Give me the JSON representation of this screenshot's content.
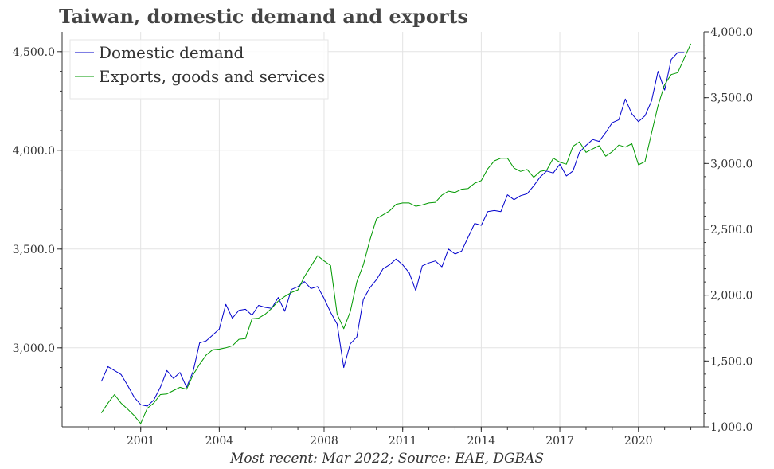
{
  "title": "Taiwan, domestic demand and exports",
  "source_note": "Most recent: Mar 2022; Source: EAE, DGBAS",
  "chart_data": {
    "type": "line",
    "title": "Taiwan, domestic demand and exports",
    "xlabel": "",
    "ylabel": "",
    "grid": true,
    "legend_position": "top-left",
    "x_ticks": [
      "2001",
      "2004",
      "2008",
      "2011",
      "2014",
      "2017",
      "2020"
    ],
    "x_tick_positions": [
      2001.0,
      2004.0,
      2008.0,
      2011.0,
      2014.0,
      2017.0,
      2020.0
    ],
    "xlim": [
      1998.0,
      2022.5
    ],
    "y_left": {
      "ylim": [
        2600,
        4600
      ],
      "ticks": [
        "3,000.0",
        "3,500.0",
        "4,000.0",
        "4,500.0"
      ],
      "tick_values": [
        3000,
        3500,
        4000,
        4500
      ]
    },
    "y_right": {
      "ylim": [
        1000,
        4000
      ],
      "ticks": [
        "1,000.0",
        "1,500.0",
        "2,000.0",
        "2,500.0",
        "3,000.0",
        "3,500.0",
        "4,000.0"
      ],
      "tick_values": [
        1000,
        1500,
        2000,
        2500,
        3000,
        3500,
        4000
      ]
    },
    "series": [
      {
        "name": "Domestic demand",
        "axis": "left",
        "color": "#0000cc",
        "points": [
          [
            1999.5,
            2830
          ],
          [
            1999.75,
            2905
          ],
          [
            2000.0,
            2885
          ],
          [
            2000.25,
            2865
          ],
          [
            2000.5,
            2810
          ],
          [
            2000.75,
            2750
          ],
          [
            2001.0,
            2712
          ],
          [
            2001.25,
            2705
          ],
          [
            2001.5,
            2735
          ],
          [
            2001.75,
            2800
          ],
          [
            2002.0,
            2885
          ],
          [
            2002.25,
            2845
          ],
          [
            2002.5,
            2875
          ],
          [
            2002.75,
            2800
          ],
          [
            2003.0,
            2880
          ],
          [
            2003.25,
            3025
          ],
          [
            2003.5,
            3035
          ],
          [
            2003.75,
            3065
          ],
          [
            2004.0,
            3095
          ],
          [
            2004.25,
            3220
          ],
          [
            2004.5,
            3150
          ],
          [
            2004.75,
            3190
          ],
          [
            2005.0,
            3195
          ],
          [
            2005.25,
            3165
          ],
          [
            2005.5,
            3215
          ],
          [
            2005.75,
            3205
          ],
          [
            2006.0,
            3200
          ],
          [
            2006.25,
            3255
          ],
          [
            2006.5,
            3185
          ],
          [
            2006.75,
            3295
          ],
          [
            2007.0,
            3310
          ],
          [
            2007.25,
            3335
          ],
          [
            2007.5,
            3300
          ],
          [
            2007.75,
            3310
          ],
          [
            2008.0,
            3250
          ],
          [
            2008.25,
            3180
          ],
          [
            2008.5,
            3120
          ],
          [
            2008.75,
            2900
          ],
          [
            2009.0,
            3020
          ],
          [
            2009.25,
            3055
          ],
          [
            2009.5,
            3245
          ],
          [
            2009.75,
            3305
          ],
          [
            2010.0,
            3345
          ],
          [
            2010.25,
            3400
          ],
          [
            2010.5,
            3420
          ],
          [
            2010.75,
            3450
          ],
          [
            2011.0,
            3420
          ],
          [
            2011.25,
            3380
          ],
          [
            2011.5,
            3290
          ],
          [
            2011.75,
            3415
          ],
          [
            2012.0,
            3430
          ],
          [
            2012.25,
            3440
          ],
          [
            2012.5,
            3410
          ],
          [
            2012.75,
            3500
          ],
          [
            2013.0,
            3475
          ],
          [
            2013.25,
            3490
          ],
          [
            2013.5,
            3560
          ],
          [
            2013.75,
            3630
          ],
          [
            2014.0,
            3620
          ],
          [
            2014.25,
            3690
          ],
          [
            2014.5,
            3695
          ],
          [
            2014.75,
            3690
          ],
          [
            2015.0,
            3775
          ],
          [
            2015.25,
            3750
          ],
          [
            2015.5,
            3770
          ],
          [
            2015.75,
            3780
          ],
          [
            2016.0,
            3820
          ],
          [
            2016.25,
            3865
          ],
          [
            2016.5,
            3895
          ],
          [
            2016.75,
            3885
          ],
          [
            2017.0,
            3930
          ],
          [
            2017.25,
            3870
          ],
          [
            2017.5,
            3895
          ],
          [
            2017.75,
            3990
          ],
          [
            2018.0,
            4025
          ],
          [
            2018.25,
            4055
          ],
          [
            2018.5,
            4045
          ],
          [
            2018.75,
            4090
          ],
          [
            2019.0,
            4140
          ],
          [
            2019.25,
            4155
          ],
          [
            2019.5,
            4260
          ],
          [
            2019.75,
            4185
          ],
          [
            2020.0,
            4145
          ],
          [
            2020.25,
            4175
          ],
          [
            2020.5,
            4250
          ],
          [
            2020.75,
            4400
          ],
          [
            2021.0,
            4305
          ],
          [
            2021.25,
            4460
          ],
          [
            2021.5,
            4495
          ],
          [
            2021.75,
            4495
          ]
        ]
      },
      {
        "name": "Exports, goods and services",
        "axis": "right",
        "color": "#009900",
        "points": [
          [
            1999.5,
            1105
          ],
          [
            1999.75,
            1180
          ],
          [
            2000.0,
            1245
          ],
          [
            2000.25,
            1180
          ],
          [
            2000.5,
            1135
          ],
          [
            2000.75,
            1085
          ],
          [
            2001.0,
            1025
          ],
          [
            2001.25,
            1140
          ],
          [
            2001.5,
            1180
          ],
          [
            2001.75,
            1245
          ],
          [
            2002.0,
            1250
          ],
          [
            2002.25,
            1275
          ],
          [
            2002.5,
            1300
          ],
          [
            2002.75,
            1285
          ],
          [
            2003.0,
            1395
          ],
          [
            2003.25,
            1475
          ],
          [
            2003.5,
            1545
          ],
          [
            2003.75,
            1585
          ],
          [
            2004.0,
            1590
          ],
          [
            2004.25,
            1600
          ],
          [
            2004.5,
            1615
          ],
          [
            2004.75,
            1665
          ],
          [
            2005.0,
            1670
          ],
          [
            2005.25,
            1820
          ],
          [
            2005.5,
            1825
          ],
          [
            2005.75,
            1855
          ],
          [
            2006.0,
            1900
          ],
          [
            2006.25,
            1955
          ],
          [
            2006.5,
            1990
          ],
          [
            2006.75,
            2020
          ],
          [
            2007.0,
            2040
          ],
          [
            2007.25,
            2140
          ],
          [
            2007.5,
            2220
          ],
          [
            2007.75,
            2300
          ],
          [
            2008.0,
            2260
          ],
          [
            2008.25,
            2225
          ],
          [
            2008.5,
            1855
          ],
          [
            2008.75,
            1745
          ],
          [
            2009.0,
            1875
          ],
          [
            2009.25,
            2100
          ],
          [
            2009.5,
            2230
          ],
          [
            2009.75,
            2420
          ],
          [
            2010.0,
            2580
          ],
          [
            2010.25,
            2610
          ],
          [
            2010.5,
            2640
          ],
          [
            2010.75,
            2690
          ],
          [
            2011.0,
            2700
          ],
          [
            2011.25,
            2700
          ],
          [
            2011.5,
            2675
          ],
          [
            2011.75,
            2685
          ],
          [
            2012.0,
            2700
          ],
          [
            2012.25,
            2705
          ],
          [
            2012.5,
            2760
          ],
          [
            2012.75,
            2790
          ],
          [
            2013.0,
            2780
          ],
          [
            2013.25,
            2805
          ],
          [
            2013.5,
            2810
          ],
          [
            2013.75,
            2850
          ],
          [
            2014.0,
            2870
          ],
          [
            2014.25,
            2960
          ],
          [
            2014.5,
            3020
          ],
          [
            2014.75,
            3040
          ],
          [
            2015.0,
            3040
          ],
          [
            2015.25,
            2965
          ],
          [
            2015.5,
            2940
          ],
          [
            2015.75,
            2955
          ],
          [
            2016.0,
            2895
          ],
          [
            2016.25,
            2940
          ],
          [
            2016.5,
            2950
          ],
          [
            2016.75,
            3040
          ],
          [
            2017.0,
            3010
          ],
          [
            2017.25,
            2995
          ],
          [
            2017.5,
            3130
          ],
          [
            2017.75,
            3165
          ],
          [
            2018.0,
            3085
          ],
          [
            2018.25,
            3110
          ],
          [
            2018.5,
            3135
          ],
          [
            2018.75,
            3055
          ],
          [
            2019.0,
            3090
          ],
          [
            2019.25,
            3140
          ],
          [
            2019.5,
            3125
          ],
          [
            2019.75,
            3150
          ],
          [
            2020.0,
            2990
          ],
          [
            2020.25,
            3015
          ],
          [
            2020.5,
            3230
          ],
          [
            2020.75,
            3440
          ],
          [
            2021.0,
            3600
          ],
          [
            2021.25,
            3675
          ],
          [
            2021.5,
            3690
          ],
          [
            2021.75,
            3800
          ],
          [
            2022.0,
            3910
          ]
        ]
      }
    ]
  }
}
